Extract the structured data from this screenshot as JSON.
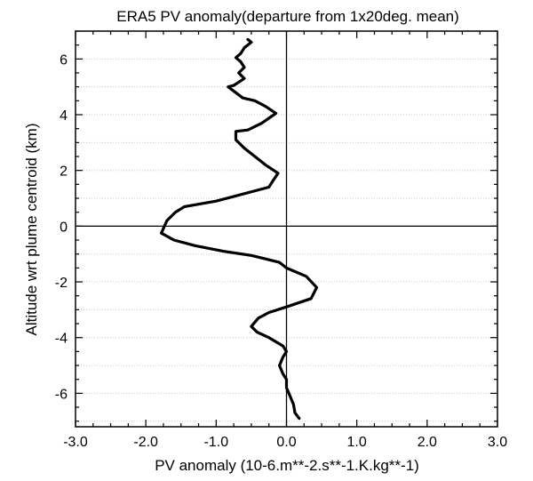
{
  "chart_data": {
    "type": "line",
    "title": "ERA5 PV anomaly(departure from 1x20deg. mean)",
    "xlabel": "PV anomaly (10-6.m**-2.s**-1.K.kg**-1)",
    "ylabel": "Altitude wrt plume centroid (km)",
    "xlim": [
      -3.0,
      3.0
    ],
    "ylim": [
      -7.2,
      7.0
    ],
    "xticks": [
      -3.0,
      -2.0,
      -1.0,
      0.0,
      1.0,
      2.0,
      3.0
    ],
    "xtick_labels": [
      "-3.0",
      "-2.0",
      "-1.0",
      "0.0",
      "1.0",
      "2.0",
      "3.0"
    ],
    "yticks": [
      -6,
      -4,
      -2,
      0,
      2,
      4,
      6
    ],
    "ytick_labels": [
      "-6",
      "-4",
      "-2",
      "0",
      "2",
      "4",
      "6"
    ],
    "grid": "horizontal-dotted",
    "reference_lines": {
      "x": 0.0,
      "y": 0.0
    },
    "series": [
      {
        "color": "#000000",
        "points": [
          {
            "x": -0.55,
            "y": 6.7
          },
          {
            "x": -0.5,
            "y": 6.6
          },
          {
            "x": -0.6,
            "y": 6.4
          },
          {
            "x": -0.65,
            "y": 6.2
          },
          {
            "x": -0.72,
            "y": 6.05
          },
          {
            "x": -0.65,
            "y": 5.9
          },
          {
            "x": -0.6,
            "y": 5.7
          },
          {
            "x": -0.68,
            "y": 5.5
          },
          {
            "x": -0.6,
            "y": 5.3
          },
          {
            "x": -0.75,
            "y": 5.05
          },
          {
            "x": -0.83,
            "y": 5.0
          },
          {
            "x": -0.62,
            "y": 4.6
          },
          {
            "x": -0.45,
            "y": 4.5
          },
          {
            "x": -0.3,
            "y": 4.3
          },
          {
            "x": -0.15,
            "y": 4.05
          },
          {
            "x": -0.35,
            "y": 3.7
          },
          {
            "x": -0.55,
            "y": 3.45
          },
          {
            "x": -0.72,
            "y": 3.4
          },
          {
            "x": -0.72,
            "y": 3.1
          },
          {
            "x": -0.6,
            "y": 2.8
          },
          {
            "x": -0.45,
            "y": 2.5
          },
          {
            "x": -0.3,
            "y": 2.2
          },
          {
            "x": -0.12,
            "y": 1.9
          },
          {
            "x": -0.2,
            "y": 1.6
          },
          {
            "x": -0.25,
            "y": 1.4
          },
          {
            "x": -0.7,
            "y": 1.1
          },
          {
            "x": -1.0,
            "y": 0.9
          },
          {
            "x": -1.45,
            "y": 0.7
          },
          {
            "x": -1.58,
            "y": 0.5
          },
          {
            "x": -1.7,
            "y": 0.2
          },
          {
            "x": -1.78,
            "y": -0.25
          },
          {
            "x": -1.6,
            "y": -0.5
          },
          {
            "x": -1.3,
            "y": -0.7
          },
          {
            "x": -0.9,
            "y": -0.9
          },
          {
            "x": -0.5,
            "y": -1.05
          },
          {
            "x": -0.1,
            "y": -1.3
          },
          {
            "x": 0.0,
            "y": -1.5
          },
          {
            "x": 0.28,
            "y": -1.8
          },
          {
            "x": 0.43,
            "y": -2.2
          },
          {
            "x": 0.35,
            "y": -2.6
          },
          {
            "x": 0.0,
            "y": -2.9
          },
          {
            "x": -0.25,
            "y": -3.1
          },
          {
            "x": -0.4,
            "y": -3.3
          },
          {
            "x": -0.5,
            "y": -3.6
          },
          {
            "x": -0.42,
            "y": -3.8
          },
          {
            "x": -0.25,
            "y": -4.0
          },
          {
            "x": -0.05,
            "y": -4.3
          },
          {
            "x": 0.0,
            "y": -4.5
          },
          {
            "x": -0.05,
            "y": -4.7
          },
          {
            "x": -0.1,
            "y": -5.0
          },
          {
            "x": -0.05,
            "y": -5.3
          },
          {
            "x": 0.0,
            "y": -5.5
          },
          {
            "x": 0.0,
            "y": -5.8
          },
          {
            "x": 0.05,
            "y": -6.1
          },
          {
            "x": 0.1,
            "y": -6.4
          },
          {
            "x": 0.12,
            "y": -6.7
          },
          {
            "x": 0.18,
            "y": -6.9
          }
        ]
      }
    ]
  }
}
